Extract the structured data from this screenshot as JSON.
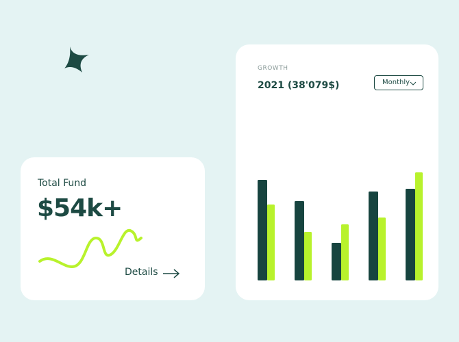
{
  "fund_card": {
    "label": "Total Fund",
    "value": "$54k+",
    "link": "Details"
  },
  "growth_card": {
    "label": "GROWTH",
    "value": "2021 (38'079$)",
    "period": "Monthly"
  },
  "chart_data": {
    "type": "bar",
    "categories": [
      null,
      null,
      null,
      null,
      null
    ],
    "series": [
      {
        "color": "#17443f",
        "values": [
          147,
          116,
          55,
          130,
          134
        ]
      },
      {
        "color": "#b8f22c",
        "values": [
          111,
          71,
          82,
          92,
          158
        ]
      }
    ]
  }
}
